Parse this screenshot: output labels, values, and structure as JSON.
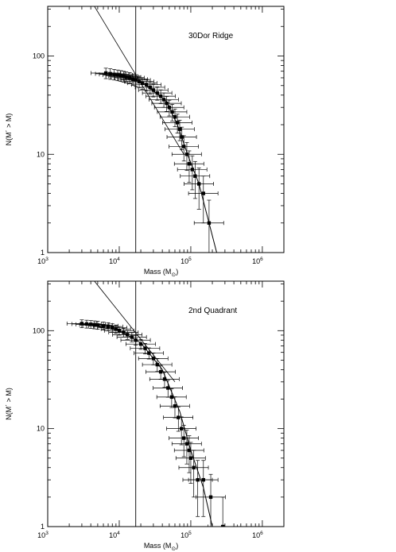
{
  "chart_data": [
    {
      "type": "scatter",
      "annotation": "30Dor Ridge",
      "xlabel_main": "Mass (M",
      "xlabel_sub": "⊙",
      "xlabel_close": ")",
      "ylabel": "N(M´ > M)",
      "xscale": "log",
      "yscale": "log",
      "xlim": [
        1000,
        2000000
      ],
      "ylim": [
        1,
        320
      ],
      "xticks": [
        {
          "value": 1000,
          "base": "10",
          "exp": "3"
        },
        {
          "value": 10000,
          "base": "10",
          "exp": "4"
        },
        {
          "value": 100000,
          "base": "10",
          "exp": "5"
        },
        {
          "value": 1000000,
          "base": "10",
          "exp": "6"
        }
      ],
      "yticks": [
        {
          "value": 1,
          "label": "1"
        },
        {
          "value": 10,
          "label": "10"
        },
        {
          "value": 100,
          "label": "100"
        }
      ],
      "vline_x": 17000,
      "powerlaw_start": [
        4500,
        320
      ],
      "powerlaw_end": [
        80000,
        10
      ],
      "fit": [
        [
          7000,
          68
        ],
        [
          20000,
          55
        ],
        [
          45000,
          35
        ],
        [
          65000,
          20
        ],
        [
          90000,
          10
        ],
        [
          130000,
          5
        ],
        [
          180000,
          2
        ],
        [
          230000,
          1
        ]
      ],
      "points": [
        [
          6500,
          67
        ],
        [
          7500,
          66
        ],
        [
          8500,
          65
        ],
        [
          9500,
          64
        ],
        [
          10500,
          63
        ],
        [
          11500,
          62
        ],
        [
          12500,
          61
        ],
        [
          14000,
          60
        ],
        [
          15500,
          58
        ],
        [
          17000,
          57
        ],
        [
          19000,
          55
        ],
        [
          21000,
          53
        ],
        [
          24000,
          51
        ],
        [
          27000,
          48
        ],
        [
          30000,
          45
        ],
        [
          34000,
          42
        ],
        [
          38000,
          39
        ],
        [
          42000,
          36
        ],
        [
          46000,
          33
        ],
        [
          50000,
          30
        ],
        [
          55000,
          27
        ],
        [
          60000,
          24
        ],
        [
          65000,
          21
        ],
        [
          70000,
          18
        ],
        [
          75000,
          15
        ],
        [
          80000,
          12
        ],
        [
          88000,
          10
        ],
        [
          95000,
          8
        ],
        [
          105000,
          7
        ],
        [
          115000,
          6
        ],
        [
          130000,
          5
        ],
        [
          150000,
          4
        ],
        [
          180000,
          2
        ]
      ]
    },
    {
      "type": "scatter",
      "annotation": "2nd Quadrant",
      "xlabel_main": "Mass (M",
      "xlabel_sub": "⊙",
      "xlabel_close": ")",
      "ylabel": "N(M´ > M)",
      "xscale": "log",
      "yscale": "log",
      "xlim": [
        1000,
        2000000
      ],
      "ylim": [
        1,
        320
      ],
      "xticks": [
        {
          "value": 1000,
          "base": "10",
          "exp": "3"
        },
        {
          "value": 10000,
          "base": "10",
          "exp": "4"
        },
        {
          "value": 100000,
          "base": "10",
          "exp": "5"
        },
        {
          "value": 1000000,
          "base": "10",
          "exp": "6"
        }
      ],
      "yticks": [
        {
          "value": 1,
          "label": "1"
        },
        {
          "value": 10,
          "label": "10"
        },
        {
          "value": 100,
          "label": "100"
        }
      ],
      "vline_x": 17000,
      "powerlaw_start": [
        4500,
        320
      ],
      "powerlaw_end": [
        60000,
        30
      ],
      "fit": [
        [
          3000,
          118
        ],
        [
          10000,
          100
        ],
        [
          20000,
          75
        ],
        [
          40000,
          40
        ],
        [
          70000,
          15
        ],
        [
          100000,
          6
        ],
        [
          150000,
          2.5
        ],
        [
          200000,
          1
        ]
      ],
      "points": [
        [
          3000,
          118
        ],
        [
          3500,
          117
        ],
        [
          4000,
          116
        ],
        [
          4500,
          115
        ],
        [
          5000,
          114
        ],
        [
          6000,
          112
        ],
        [
          7000,
          110
        ],
        [
          8000,
          107
        ],
        [
          9000,
          104
        ],
        [
          10000,
          100
        ],
        [
          11500,
          96
        ],
        [
          13000,
          91
        ],
        [
          15000,
          86
        ],
        [
          17000,
          80
        ],
        [
          20000,
          73
        ],
        [
          23000,
          66
        ],
        [
          26000,
          59
        ],
        [
          30000,
          52
        ],
        [
          34000,
          45
        ],
        [
          38000,
          38
        ],
        [
          43000,
          32
        ],
        [
          48000,
          26
        ],
        [
          54000,
          21
        ],
        [
          60000,
          17
        ],
        [
          67000,
          13
        ],
        [
          74000,
          10
        ],
        [
          80000,
          8
        ],
        [
          88000,
          7
        ],
        [
          95000,
          6
        ],
        [
          100000,
          5
        ],
        [
          110000,
          4
        ],
        [
          125000,
          3
        ],
        [
          150000,
          3
        ],
        [
          190000,
          2
        ],
        [
          280000,
          1
        ]
      ]
    }
  ]
}
